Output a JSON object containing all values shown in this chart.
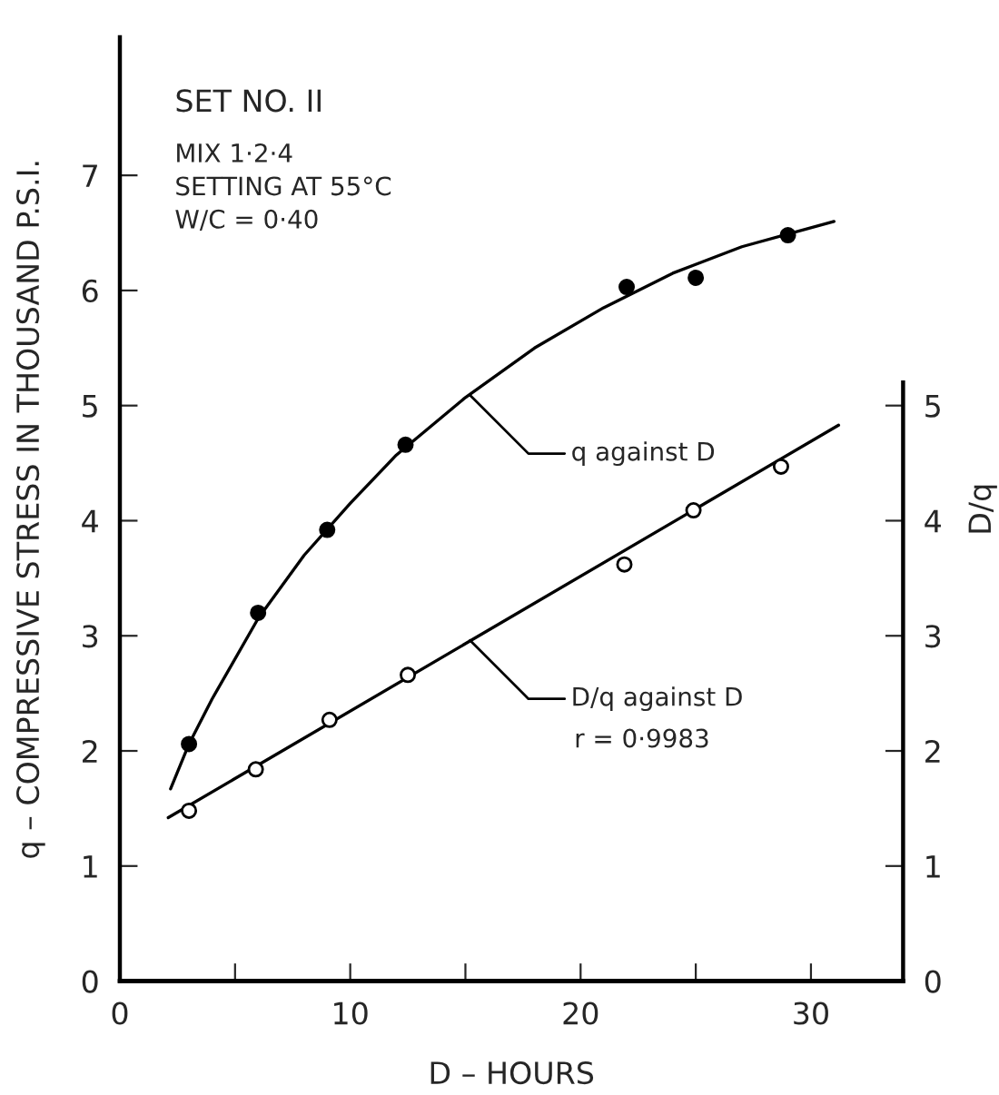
{
  "chart_data": {
    "type": "scatter",
    "xlabel": "D – HOURS",
    "ylabel": "q – COMPRESSIVE STRESS IN THOUSAND P.S.I.",
    "y2label": "D/q",
    "xlim": [
      0,
      34
    ],
    "xticks": [
      0,
      {
        "value": 5,
        "label": null
      },
      10,
      {
        "value": 15,
        "label": null
      },
      20,
      {
        "value": 25,
        "label": null
      },
      30
    ],
    "ylim": [
      0,
      8.2
    ],
    "yticks": [
      0,
      1,
      2,
      3,
      4,
      5,
      6,
      7
    ],
    "y2lim": [
      0,
      8.2
    ],
    "y2ticks": [
      0,
      1,
      2,
      3,
      4,
      5
    ],
    "grid": false,
    "series": [
      {
        "marker": "circle",
        "color": "#000000",
        "x": [
          3,
          6,
          9,
          12.4,
          22,
          25,
          29
        ],
        "values": [
          2.06,
          3.2,
          3.92,
          4.66,
          6.03,
          6.11,
          6.48
        ]
      },
      {
        "type": "line",
        "marker": "none",
        "color": "#000000",
        "x": [
          2.2,
          3,
          4,
          6,
          8,
          10,
          12,
          15,
          18,
          21,
          24,
          27,
          31
        ],
        "values": [
          1.67,
          2.06,
          2.45,
          3.15,
          3.7,
          4.15,
          4.57,
          5.07,
          5.5,
          5.85,
          6.15,
          6.38,
          6.6
        ]
      },
      {
        "marker": "circle",
        "color": "#ffffff",
        "x": [
          3,
          5.9,
          9.1,
          12.5,
          21.9,
          24.9,
          28.7
        ],
        "values": [
          1.48,
          1.84,
          2.27,
          2.66,
          3.62,
          4.09,
          4.47
        ]
      },
      {
        "type": "line",
        "marker": "none",
        "color": "#000000",
        "x": [
          2.1,
          31.2
        ],
        "values": [
          1.42,
          4.83
        ]
      }
    ],
    "annotations": [
      "SET NO. II",
      "MIX 1·2·4",
      "SETTING AT 55°C",
      "W/C = 0·40",
      {
        "text": "q against D",
        "x": 15.2,
        "y": 5.09
      },
      {
        "text": "D/q against D",
        "x": 15.2,
        "y": 2.96
      },
      "r = 0·9983"
    ]
  }
}
